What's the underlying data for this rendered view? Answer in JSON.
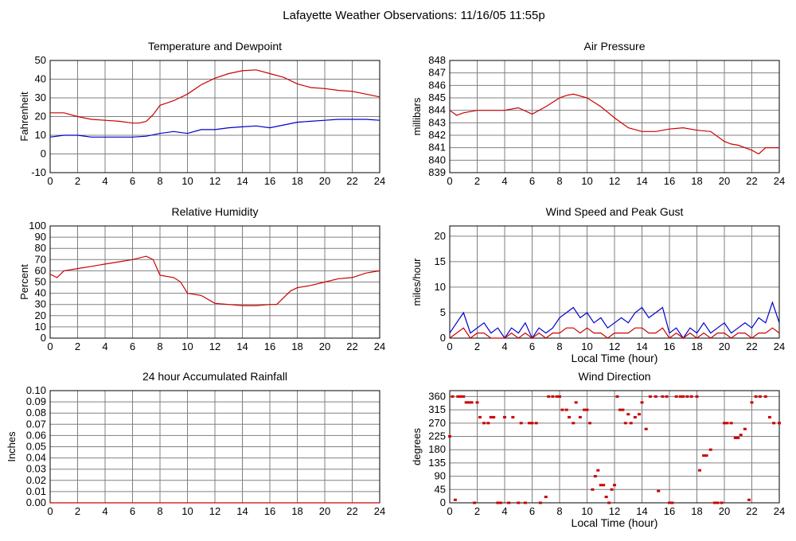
{
  "title": "Lafayette Weather Observations: 11/16/05 11:55p",
  "colors": {
    "red": "#cc0000",
    "blue": "#0000cc",
    "grid": "#808080",
    "frame": "#000000"
  },
  "chart_data": [
    {
      "id": "temp",
      "type": "line",
      "title": "Temperature and Dewpoint",
      "ylabel": "Fahrenheit",
      "xlabel": "",
      "xlim": [
        0,
        24
      ],
      "ylim": [
        -10,
        50
      ],
      "xticks": [
        0,
        2,
        4,
        6,
        8,
        10,
        12,
        14,
        16,
        18,
        20,
        22,
        24
      ],
      "yticks": [
        -10,
        0,
        10,
        20,
        30,
        40,
        50
      ],
      "grid": true,
      "series": [
        {
          "color": "#cc0000",
          "x": [
            0,
            1,
            2,
            3,
            4,
            5,
            6,
            6.5,
            7,
            7.5,
            8,
            9,
            10,
            11,
            12,
            13,
            14,
            15,
            16,
            17,
            18,
            19,
            20,
            21,
            22,
            23,
            24
          ],
          "y": [
            22,
            22,
            20,
            18.5,
            18,
            17.5,
            16.5,
            16.5,
            17.5,
            21,
            26,
            28.5,
            32,
            37,
            40.5,
            43,
            44.5,
            45,
            43,
            41,
            37.5,
            35.5,
            35,
            34,
            33.5,
            32,
            30.5
          ]
        },
        {
          "color": "#0000cc",
          "x": [
            0,
            1,
            2,
            3,
            4,
            5,
            6,
            7,
            8,
            9,
            10,
            11,
            12,
            13,
            14,
            15,
            16,
            17,
            18,
            19,
            20,
            21,
            22,
            23,
            24
          ],
          "y": [
            9,
            10,
            10,
            9,
            9,
            9,
            9,
            9.5,
            11,
            12,
            11,
            13,
            13,
            14,
            14.5,
            15,
            14,
            15.5,
            17,
            17.5,
            18,
            18.5,
            18.5,
            18.5,
            18
          ]
        }
      ]
    },
    {
      "id": "pressure",
      "type": "line",
      "title": "Air Pressure",
      "ylabel": "millibars",
      "xlabel": "",
      "xlim": [
        0,
        24
      ],
      "ylim": [
        839,
        848
      ],
      "xticks": [
        0,
        2,
        4,
        6,
        8,
        10,
        12,
        14,
        16,
        18,
        20,
        22,
        24
      ],
      "yticks": [
        839,
        840,
        841,
        842,
        843,
        844,
        845,
        846,
        847,
        848
      ],
      "grid": true,
      "series": [
        {
          "color": "#cc0000",
          "x": [
            0,
            0.5,
            1,
            2,
            3,
            4,
            5,
            6,
            7,
            8,
            8.5,
            9,
            10,
            11,
            12,
            13,
            14,
            15,
            16,
            17,
            18,
            19,
            20,
            20.5,
            21,
            22,
            22.5,
            23,
            24
          ],
          "y": [
            844,
            843.6,
            843.8,
            844,
            844,
            844,
            844.2,
            843.7,
            844.3,
            845,
            845.2,
            845.3,
            845,
            844.3,
            843.4,
            842.6,
            842.3,
            842.3,
            842.5,
            842.6,
            842.4,
            842.3,
            841.5,
            841.3,
            841.2,
            840.8,
            840.5,
            841,
            841
          ]
        }
      ]
    },
    {
      "id": "humidity",
      "type": "line",
      "title": "Relative Humidity",
      "ylabel": "Percent",
      "xlabel": "",
      "xlim": [
        0,
        24
      ],
      "ylim": [
        0,
        100
      ],
      "xticks": [
        0,
        2,
        4,
        6,
        8,
        10,
        12,
        14,
        16,
        18,
        20,
        22,
        24
      ],
      "yticks": [
        0,
        10,
        20,
        30,
        40,
        50,
        60,
        70,
        80,
        90,
        100
      ],
      "grid": true,
      "series": [
        {
          "color": "#cc0000",
          "x": [
            0,
            0.5,
            1,
            2,
            3,
            4,
            5,
            6,
            7,
            7.5,
            8,
            9,
            9.5,
            10,
            11,
            12,
            13,
            14,
            15,
            16,
            16.5,
            17,
            17.5,
            18,
            19,
            20,
            21,
            22,
            23,
            24
          ],
          "y": [
            57,
            54,
            60,
            62,
            64,
            66,
            68,
            70,
            73,
            70,
            56,
            54,
            50,
            40,
            38,
            31,
            30,
            29,
            29,
            30,
            30,
            36,
            42,
            45,
            47,
            50,
            53,
            54,
            58,
            60
          ]
        }
      ]
    },
    {
      "id": "wind",
      "type": "line",
      "title": "Wind Speed and Peak Gust",
      "ylabel": "miles/hour",
      "xlabel": "Local Time (hour)",
      "xlim": [
        0,
        24
      ],
      "ylim": [
        0,
        22
      ],
      "xticks": [
        0,
        2,
        4,
        6,
        8,
        10,
        12,
        14,
        16,
        18,
        20,
        22,
        24
      ],
      "yticks": [
        0,
        5,
        10,
        15,
        20
      ],
      "grid": true,
      "series": [
        {
          "color": "#0000cc",
          "x": [
            0,
            0.5,
            1,
            1.5,
            2,
            2.5,
            3,
            3.5,
            4,
            4.5,
            5,
            5.5,
            6,
            6.5,
            7,
            7.5,
            8,
            8.5,
            9,
            9.5,
            10,
            10.5,
            11,
            11.5,
            12,
            12.5,
            13,
            13.5,
            14,
            14.5,
            15,
            15.5,
            16,
            16.5,
            17,
            17.5,
            18,
            18.5,
            19,
            19.5,
            20,
            20.5,
            21,
            21.5,
            22,
            22.5,
            23,
            23.5,
            24
          ],
          "y": [
            1,
            3,
            5,
            1,
            2,
            3,
            1,
            2,
            0,
            2,
            1,
            3,
            0,
            2,
            1,
            2,
            4,
            5,
            6,
            4,
            5,
            3,
            4,
            2,
            3,
            4,
            3,
            5,
            6,
            4,
            5,
            6,
            1,
            2,
            0,
            2,
            1,
            3,
            1,
            2,
            3,
            1,
            2,
            3,
            2,
            4,
            3,
            7,
            3
          ]
        },
        {
          "color": "#cc0000",
          "x": [
            0,
            0.5,
            1,
            1.5,
            2,
            2.5,
            3,
            3.5,
            4,
            4.5,
            5,
            5.5,
            6,
            6.5,
            7,
            7.5,
            8,
            8.5,
            9,
            9.5,
            10,
            10.5,
            11,
            11.5,
            12,
            12.5,
            13,
            13.5,
            14,
            14.5,
            15,
            15.5,
            16,
            16.5,
            17,
            17.5,
            18,
            18.5,
            19,
            19.5,
            20,
            20.5,
            21,
            21.5,
            22,
            22.5,
            23,
            23.5,
            24
          ],
          "y": [
            0,
            1,
            2,
            0,
            1,
            1,
            0,
            0,
            0,
            1,
            0,
            1,
            0,
            1,
            0,
            1,
            1,
            2,
            2,
            1,
            2,
            1,
            1,
            0,
            1,
            1,
            1,
            2,
            2,
            1,
            1,
            2,
            0,
            1,
            0,
            1,
            0,
            1,
            0,
            1,
            1,
            0,
            1,
            1,
            0,
            1,
            1,
            2,
            1
          ]
        }
      ]
    },
    {
      "id": "rain",
      "type": "line",
      "title": "24 hour Accumulated Rainfall",
      "ylabel": "Inches",
      "xlabel": "",
      "xlim": [
        0,
        24
      ],
      "ylim": [
        0,
        0.1
      ],
      "xticks": [
        0,
        2,
        4,
        6,
        8,
        10,
        12,
        14,
        16,
        18,
        20,
        22,
        24
      ],
      "yticks": [
        0,
        0.01,
        0.02,
        0.03,
        0.04,
        0.05,
        0.06,
        0.07,
        0.08,
        0.09,
        0.1
      ],
      "ytick_labels": [
        "0.00",
        "0.01",
        "0.02",
        "0.03",
        "0.04",
        "0.05",
        "0.06",
        "0.07",
        "0.08",
        "0.09",
        "0.10"
      ],
      "grid": true,
      "series": [
        {
          "color": "#cc0000",
          "x": [
            0,
            24
          ],
          "y": [
            0,
            0
          ]
        }
      ]
    },
    {
      "id": "direction",
      "type": "scatter",
      "title": "Wind Direction",
      "ylabel": "degrees",
      "xlabel": "Local Time (hour)",
      "xlim": [
        0,
        24
      ],
      "ylim": [
        0,
        380
      ],
      "xticks": [
        0,
        2,
        4,
        6,
        8,
        10,
        12,
        14,
        16,
        18,
        20,
        22,
        24
      ],
      "yticks": [
        0,
        45,
        90,
        135,
        180,
        225,
        270,
        315,
        360
      ],
      "grid": true,
      "series": [
        {
          "color": "#cc0000",
          "x": [
            0,
            0.2,
            0.4,
            0.6,
            0.8,
            1.0,
            1.2,
            1.4,
            1.6,
            1.8,
            2.0,
            2.2,
            2.5,
            2.8,
            3.0,
            3.2,
            3.5,
            3.7,
            4.0,
            4.3,
            4.6,
            5.0,
            5.2,
            5.5,
            5.8,
            6.0,
            6.3,
            6.6,
            7.0,
            7.2,
            7.5,
            7.8,
            8.0,
            8.2,
            8.5,
            8.7,
            9.0,
            9.2,
            9.5,
            9.8,
            10.0,
            10.2,
            10.4,
            10.6,
            10.8,
            11.0,
            11.2,
            11.4,
            11.6,
            11.8,
            12.0,
            12.2,
            12.4,
            12.6,
            12.8,
            13.0,
            13.2,
            13.5,
            13.8,
            14.0,
            14.3,
            14.6,
            15.0,
            15.2,
            15.5,
            15.8,
            16.0,
            16.2,
            16.5,
            16.8,
            17.0,
            17.3,
            17.6,
            18.0,
            18.2,
            18.5,
            18.7,
            19.0,
            19.3,
            19.5,
            19.8,
            20.0,
            20.2,
            20.5,
            20.8,
            21.0,
            21.2,
            21.5,
            21.8,
            22.0,
            22.3,
            22.6,
            23.0,
            23.3,
            23.6,
            24.0
          ],
          "y": [
            225,
            360,
            10,
            360,
            360,
            360,
            340,
            340,
            340,
            0,
            340,
            290,
            270,
            270,
            290,
            290,
            0,
            0,
            290,
            0,
            290,
            0,
            270,
            0,
            270,
            270,
            270,
            0,
            20,
            360,
            360,
            360,
            360,
            315,
            315,
            290,
            270,
            340,
            290,
            315,
            315,
            270,
            45,
            90,
            110,
            60,
            60,
            20,
            0,
            45,
            60,
            360,
            315,
            315,
            270,
            300,
            270,
            290,
            300,
            340,
            250,
            360,
            360,
            40,
            360,
            360,
            0,
            0,
            360,
            360,
            360,
            360,
            360,
            360,
            110,
            160,
            160,
            180,
            0,
            0,
            0,
            270,
            270,
            270,
            220,
            220,
            230,
            250,
            10,
            340,
            360,
            360,
            360,
            290,
            270,
            270
          ]
        }
      ]
    }
  ]
}
